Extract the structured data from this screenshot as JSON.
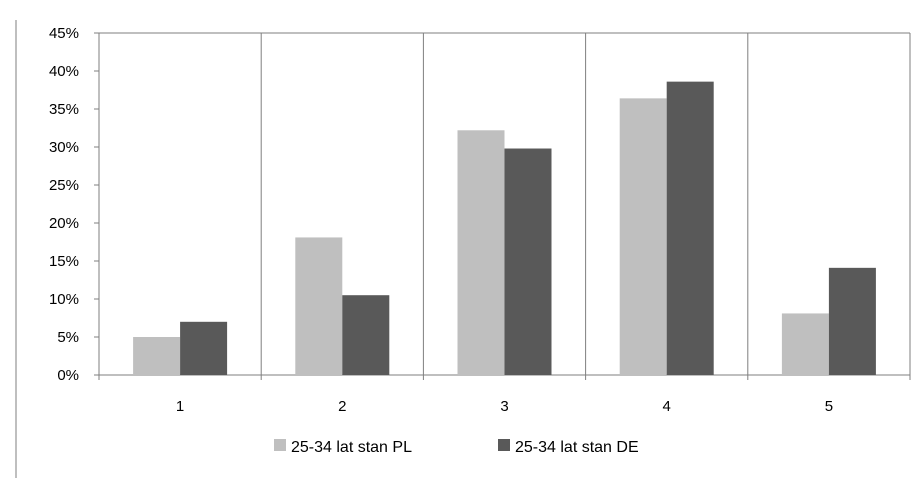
{
  "chart_data": {
    "type": "bar",
    "title": "",
    "xlabel": "",
    "ylabel": "",
    "categories": [
      "1",
      "2",
      "3",
      "4",
      "5"
    ],
    "series": [
      {
        "name": "25-34 lat stan PL",
        "color": "#bfbfbf",
        "values": [
          5.0,
          18.1,
          32.2,
          36.4,
          8.1
        ]
      },
      {
        "name": "25-34 lat stan DE",
        "color": "#595959",
        "values": [
          7.0,
          10.5,
          29.8,
          38.6,
          14.1
        ]
      }
    ],
    "ylim": [
      0,
      45
    ],
    "ytick_step": 5,
    "ytick_labels": [
      "0%",
      "5%",
      "10%",
      "15%",
      "20%",
      "25%",
      "30%",
      "35%",
      "40%",
      "45%"
    ],
    "grid": "vertical-and-top",
    "legend_position": "bottom"
  }
}
